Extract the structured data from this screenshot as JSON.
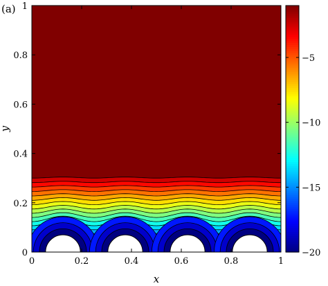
{
  "panel_label": "(a)",
  "chart_data": {
    "type": "contour",
    "xlabel": "x",
    "ylabel": "y",
    "xlim": [
      0,
      1
    ],
    "ylim": [
      0,
      1
    ],
    "x_ticks": [
      0,
      0.2,
      0.4,
      0.6,
      0.8,
      1
    ],
    "x_tick_labels": [
      "0",
      "0.2",
      "0.4",
      "0.6",
      "0.8",
      "1"
    ],
    "y_ticks": [
      0,
      0.2,
      0.4,
      0.6,
      0.8,
      1
    ],
    "y_tick_labels": [
      "0",
      "0.2",
      "0.4",
      "0.6",
      "0.8",
      "1"
    ],
    "colorbar": {
      "range": [
        -20,
        -1
      ],
      "ticks": [
        -20,
        -15,
        -10,
        -5
      ],
      "tick_labels": [
        "−20",
        "−15",
        "−10",
        "−5"
      ],
      "colormap": "jet"
    },
    "contour_levels": [
      -20,
      -19,
      -18,
      -17,
      -16,
      -15,
      -14,
      -13,
      -12,
      -11,
      -10,
      -9,
      -8,
      -7,
      -6,
      -5,
      -4,
      -3,
      -2
    ],
    "obstacles": {
      "shape": "semicircle",
      "centers_x": [
        0.125,
        0.375,
        0.625,
        0.875
      ],
      "radius": 0.07
    },
    "uniform_region": {
      "y_above": 0.32,
      "value": -1
    }
  }
}
